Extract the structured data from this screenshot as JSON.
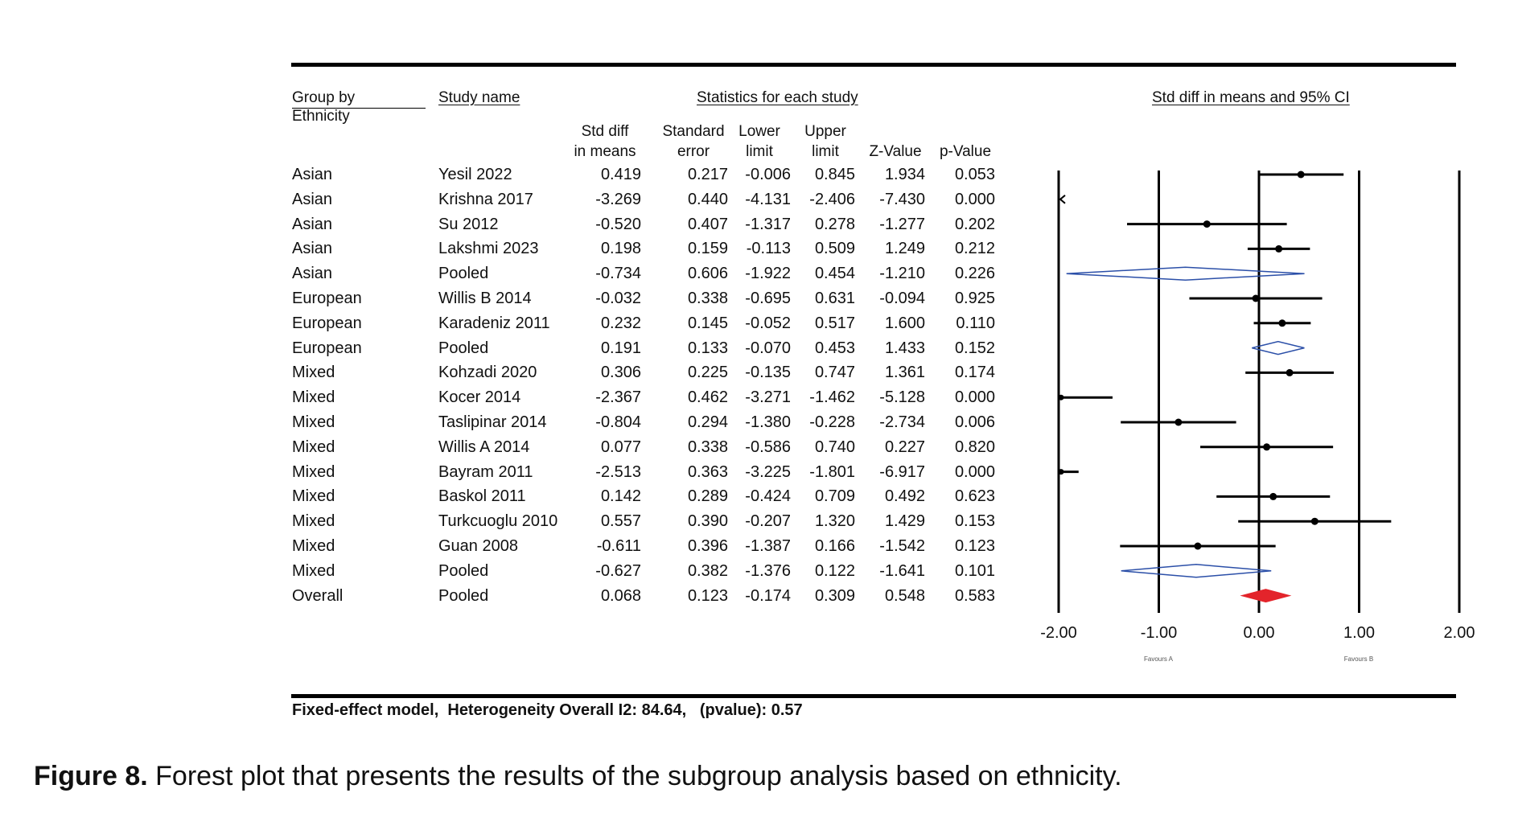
{
  "chart_data": {
    "type": "forest",
    "headers": {
      "group": "Group by",
      "group2": "Ethnicity",
      "study": "Study name",
      "stats": "Statistics for each study",
      "plot": "Std diff in means and 95% CI",
      "columns": [
        {
          "l1": "Std diff",
          "l2": "in means"
        },
        {
          "l1": "Standard",
          "l2": "error"
        },
        {
          "l1": "Lower",
          "l2": "limit"
        },
        {
          "l1": "Upper",
          "l2": "limit"
        },
        {
          "l1": "",
          "l2": "Z-Value"
        },
        {
          "l1": "",
          "l2": "p-Value"
        }
      ]
    },
    "rows": [
      {
        "group": "Asian",
        "study": "Yesil 2022",
        "smd": 0.419,
        "se": 0.217,
        "lower": -0.006,
        "upper": 0.845,
        "z": 1.934,
        "p": 0.053,
        "kind": "study"
      },
      {
        "group": "Asian",
        "study": "Krishna 2017",
        "smd": -3.269,
        "se": 0.44,
        "lower": -4.131,
        "upper": -2.406,
        "z": -7.43,
        "p": 0.0,
        "kind": "study"
      },
      {
        "group": "Asian",
        "study": "Su 2012",
        "smd": -0.52,
        "se": 0.407,
        "lower": -1.317,
        "upper": 0.278,
        "z": -1.277,
        "p": 0.202,
        "kind": "study"
      },
      {
        "group": "Asian",
        "study": "Lakshmi 2023",
        "smd": 0.198,
        "se": 0.159,
        "lower": -0.113,
        "upper": 0.509,
        "z": 1.249,
        "p": 0.212,
        "kind": "study"
      },
      {
        "group": "Asian",
        "study": "Pooled",
        "smd": -0.734,
        "se": 0.606,
        "lower": -1.922,
        "upper": 0.454,
        "z": -1.21,
        "p": 0.226,
        "kind": "pooled"
      },
      {
        "group": "European",
        "study": "Willis B 2014",
        "smd": -0.032,
        "se": 0.338,
        "lower": -0.695,
        "upper": 0.631,
        "z": -0.094,
        "p": 0.925,
        "kind": "study"
      },
      {
        "group": "European",
        "study": "Karadeniz 2011",
        "smd": 0.232,
        "se": 0.145,
        "lower": -0.052,
        "upper": 0.517,
        "z": 1.6,
        "p": 0.11,
        "kind": "study"
      },
      {
        "group": "European",
        "study": "Pooled",
        "smd": 0.191,
        "se": 0.133,
        "lower": -0.07,
        "upper": 0.453,
        "z": 1.433,
        "p": 0.152,
        "kind": "pooled"
      },
      {
        "group": "Mixed",
        "study": "Kohzadi 2020",
        "smd": 0.306,
        "se": 0.225,
        "lower": -0.135,
        "upper": 0.747,
        "z": 1.361,
        "p": 0.174,
        "kind": "study"
      },
      {
        "group": "Mixed",
        "study": "Kocer 2014",
        "smd": -2.367,
        "se": 0.462,
        "lower": -3.271,
        "upper": -1.462,
        "z": -5.128,
        "p": 0.0,
        "kind": "study"
      },
      {
        "group": "Mixed",
        "study": "Taslipinar 2014",
        "smd": -0.804,
        "se": 0.294,
        "lower": -1.38,
        "upper": -0.228,
        "z": -2.734,
        "p": 0.006,
        "kind": "study"
      },
      {
        "group": "Mixed",
        "study": "Willis A 2014",
        "smd": 0.077,
        "se": 0.338,
        "lower": -0.586,
        "upper": 0.74,
        "z": 0.227,
        "p": 0.82,
        "kind": "study"
      },
      {
        "group": "Mixed",
        "study": "Bayram 2011",
        "smd": -2.513,
        "se": 0.363,
        "lower": -3.225,
        "upper": -1.801,
        "z": -6.917,
        "p": 0.0,
        "kind": "study"
      },
      {
        "group": "Mixed",
        "study": "Baskol 2011",
        "smd": 0.142,
        "se": 0.289,
        "lower": -0.424,
        "upper": 0.709,
        "z": 0.492,
        "p": 0.623,
        "kind": "study"
      },
      {
        "group": "Mixed",
        "study": "Turkcuoglu 2010",
        "smd": 0.557,
        "se": 0.39,
        "lower": -0.207,
        "upper": 1.32,
        "z": 1.429,
        "p": 0.153,
        "kind": "study"
      },
      {
        "group": "Mixed",
        "study": "Guan 2008",
        "smd": -0.611,
        "se": 0.396,
        "lower": -1.387,
        "upper": 0.166,
        "z": -1.542,
        "p": 0.123,
        "kind": "study"
      },
      {
        "group": "Mixed",
        "study": "Pooled",
        "smd": -0.627,
        "se": 0.382,
        "lower": -1.376,
        "upper": 0.122,
        "z": -1.641,
        "p": 0.101,
        "kind": "pooled"
      },
      {
        "group": "Overall",
        "study": "Pooled",
        "smd": 0.068,
        "se": 0.123,
        "lower": -0.174,
        "upper": 0.309,
        "z": 0.548,
        "p": 0.583,
        "kind": "overall"
      }
    ],
    "xlim": [
      -2,
      2
    ],
    "xticks": [
      -2,
      -1,
      0,
      1,
      2
    ],
    "xtick_labels": [
      "-2.00",
      "-1.00",
      "0.00",
      "1.00",
      "2.00"
    ],
    "favours_left": "Favours A",
    "favours_right": "Favours B",
    "colors": {
      "study": "#000000",
      "pooled": "#2b4fa8",
      "overall": "#e3242b"
    }
  },
  "footnote": "Fixed-effect model,  Heterogeneity Overall I2: 84.64,   (pvalue): 0.57",
  "caption": {
    "label": "Figure 8.",
    "text": " Forest plot that presents the results of the subgroup analysis based on ethnicity."
  }
}
